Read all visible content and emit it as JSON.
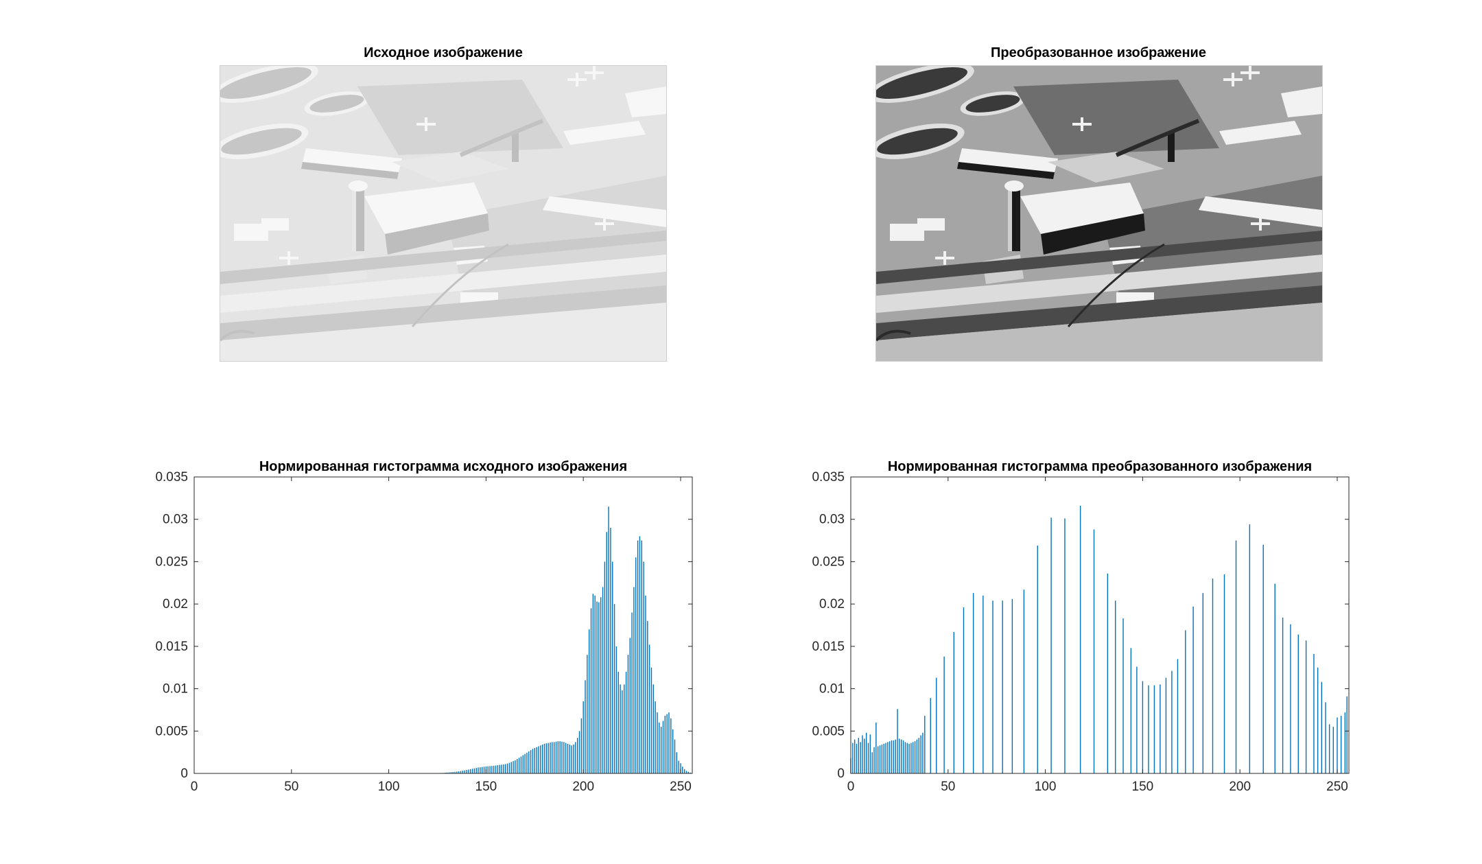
{
  "figure": {
    "top_left_title": "Исходное изображение",
    "top_right_title": "Преобразованное изображение"
  },
  "colors": {
    "bar": "#0072BD",
    "axis": "#262626"
  },
  "chart_data": [
    {
      "type": "bar",
      "title": "Нормированная гистограмма исходного изображения",
      "xlabel": "",
      "ylabel": "",
      "xlim": [
        0,
        256
      ],
      "ylim": [
        0,
        0.035
      ],
      "xticks": [
        0,
        50,
        100,
        150,
        200,
        250
      ],
      "yticks": [
        0,
        0.005,
        0.01,
        0.015,
        0.02,
        0.025,
        0.03,
        0.035
      ],
      "ytick_labels": [
        "0",
        "0.005",
        "0.01",
        "0.015",
        "0.02",
        "0.025",
        "0.03",
        "0.035"
      ],
      "grid": false,
      "x": [
        125,
        126,
        127,
        128,
        129,
        130,
        131,
        132,
        133,
        134,
        135,
        136,
        137,
        138,
        139,
        140,
        141,
        142,
        143,
        144,
        145,
        146,
        147,
        148,
        149,
        150,
        151,
        152,
        153,
        154,
        155,
        156,
        157,
        158,
        159,
        160,
        161,
        162,
        163,
        164,
        165,
        166,
        167,
        168,
        169,
        170,
        171,
        172,
        173,
        174,
        175,
        176,
        177,
        178,
        179,
        180,
        181,
        182,
        183,
        184,
        185,
        186,
        187,
        188,
        189,
        190,
        191,
        192,
        193,
        194,
        195,
        196,
        197,
        198,
        199,
        200,
        201,
        202,
        203,
        204,
        205,
        206,
        207,
        208,
        209,
        210,
        211,
        212,
        213,
        214,
        215,
        216,
        217,
        218,
        219,
        220,
        221,
        222,
        223,
        224,
        225,
        226,
        227,
        228,
        229,
        230,
        231,
        232,
        233,
        234,
        235,
        236,
        237,
        238,
        239,
        240,
        241,
        242,
        243,
        244,
        245,
        246,
        247,
        248,
        249,
        250,
        251,
        252,
        253,
        254,
        255
      ],
      "values": [
        3e-05,
        4e-05,
        5e-05,
        6e-05,
        8e-05,
        0.0001,
        0.00012,
        0.00014,
        0.00016,
        0.00019,
        0.00022,
        0.00025,
        0.00028,
        0.00032,
        0.00036,
        0.0004,
        0.00045,
        0.0005,
        0.00055,
        0.0006,
        0.00065,
        0.0007,
        0.00073,
        0.00076,
        0.00079,
        0.00082,
        0.00084,
        0.00086,
        0.00088,
        0.0009,
        0.00093,
        0.00097,
        0.001,
        0.00103,
        0.00106,
        0.0011,
        0.00117,
        0.00125,
        0.00135,
        0.00145,
        0.00155,
        0.0017,
        0.00185,
        0.002,
        0.00215,
        0.0023,
        0.00245,
        0.0026,
        0.00275,
        0.0029,
        0.003,
        0.0031,
        0.0032,
        0.0033,
        0.0034,
        0.0035,
        0.00355,
        0.0036,
        0.00365,
        0.0037,
        0.0037,
        0.00375,
        0.0038,
        0.0038,
        0.00375,
        0.0037,
        0.0036,
        0.0035,
        0.0034,
        0.0033,
        0.0034,
        0.0037,
        0.0042,
        0.005,
        0.0065,
        0.0085,
        0.011,
        0.014,
        0.017,
        0.0195,
        0.0212,
        0.021,
        0.0203,
        0.0202,
        0.0208,
        0.022,
        0.025,
        0.0285,
        0.0315,
        0.029,
        0.025,
        0.02,
        0.015,
        0.012,
        0.0105,
        0.0098,
        0.0105,
        0.012,
        0.014,
        0.016,
        0.019,
        0.022,
        0.0255,
        0.0275,
        0.028,
        0.0275,
        0.025,
        0.021,
        0.018,
        0.0152,
        0.0125,
        0.0105,
        0.0085,
        0.0072,
        0.006,
        0.0055,
        0.0062,
        0.0068,
        0.007,
        0.0072,
        0.0065,
        0.0052,
        0.004,
        0.0025,
        0.0015,
        0.0012,
        0.0008,
        0.0005,
        0.0003,
        0.0002,
        0.0001
      ]
    },
    {
      "type": "bar",
      "title": "Нормированная гистограмма преобразованного изображения",
      "xlabel": "",
      "ylabel": "",
      "xlim": [
        0,
        256
      ],
      "ylim": [
        0,
        0.035
      ],
      "xticks": [
        0,
        50,
        100,
        150,
        200,
        250
      ],
      "yticks": [
        0,
        0.005,
        0.01,
        0.015,
        0.02,
        0.025,
        0.03,
        0.035
      ],
      "ytick_labels": [
        "0",
        "0.005",
        "0.01",
        "0.015",
        "0.02",
        "0.025",
        "0.03",
        "0.035"
      ],
      "grid": false,
      "x": [
        0,
        1,
        2,
        3,
        4,
        5,
        6,
        7,
        8,
        9,
        10,
        11,
        12,
        13,
        14,
        15,
        16,
        17,
        18,
        19,
        20,
        21,
        22,
        23,
        24,
        25,
        26,
        27,
        28,
        29,
        30,
        31,
        32,
        33,
        34,
        35,
        36,
        37,
        38,
        41,
        44,
        48,
        53,
        58,
        63,
        68,
        73,
        78,
        83,
        89,
        96,
        103,
        110,
        118,
        125,
        132,
        136,
        140,
        144,
        147,
        150,
        153,
        156,
        159,
        162,
        165,
        168,
        172,
        176,
        181,
        186,
        192,
        198,
        205,
        212,
        218,
        222,
        226,
        230,
        234,
        238,
        240,
        242,
        244,
        246,
        248,
        250,
        252,
        254,
        255
      ],
      "values": [
        0.0018,
        0.0036,
        0.004,
        0.0035,
        0.0042,
        0.0037,
        0.0045,
        0.0041,
        0.0048,
        0.0036,
        0.0046,
        0.0025,
        0.0031,
        0.006,
        0.0032,
        0.0033,
        0.0034,
        0.0035,
        0.0036,
        0.0037,
        0.0038,
        0.0039,
        0.0039,
        0.004,
        0.0076,
        0.0041,
        0.004,
        0.0039,
        0.0037,
        0.0036,
        0.0035,
        0.0036,
        0.0037,
        0.0038,
        0.004,
        0.0042,
        0.0045,
        0.0048,
        0.0068,
        0.0089,
        0.0113,
        0.0138,
        0.0167,
        0.0196,
        0.0213,
        0.021,
        0.0204,
        0.0204,
        0.0206,
        0.0217,
        0.0269,
        0.0302,
        0.0301,
        0.0316,
        0.0288,
        0.0236,
        0.0204,
        0.0183,
        0.0148,
        0.0126,
        0.0109,
        0.0104,
        0.0104,
        0.0105,
        0.0113,
        0.0121,
        0.0135,
        0.0169,
        0.0197,
        0.0213,
        0.023,
        0.0235,
        0.0275,
        0.0294,
        0.027,
        0.0224,
        0.0184,
        0.0176,
        0.0164,
        0.0157,
        0.0141,
        0.0125,
        0.0108,
        0.0084,
        0.0058,
        0.0055,
        0.0066,
        0.0068,
        0.0072,
        0.0091
      ]
    }
  ]
}
